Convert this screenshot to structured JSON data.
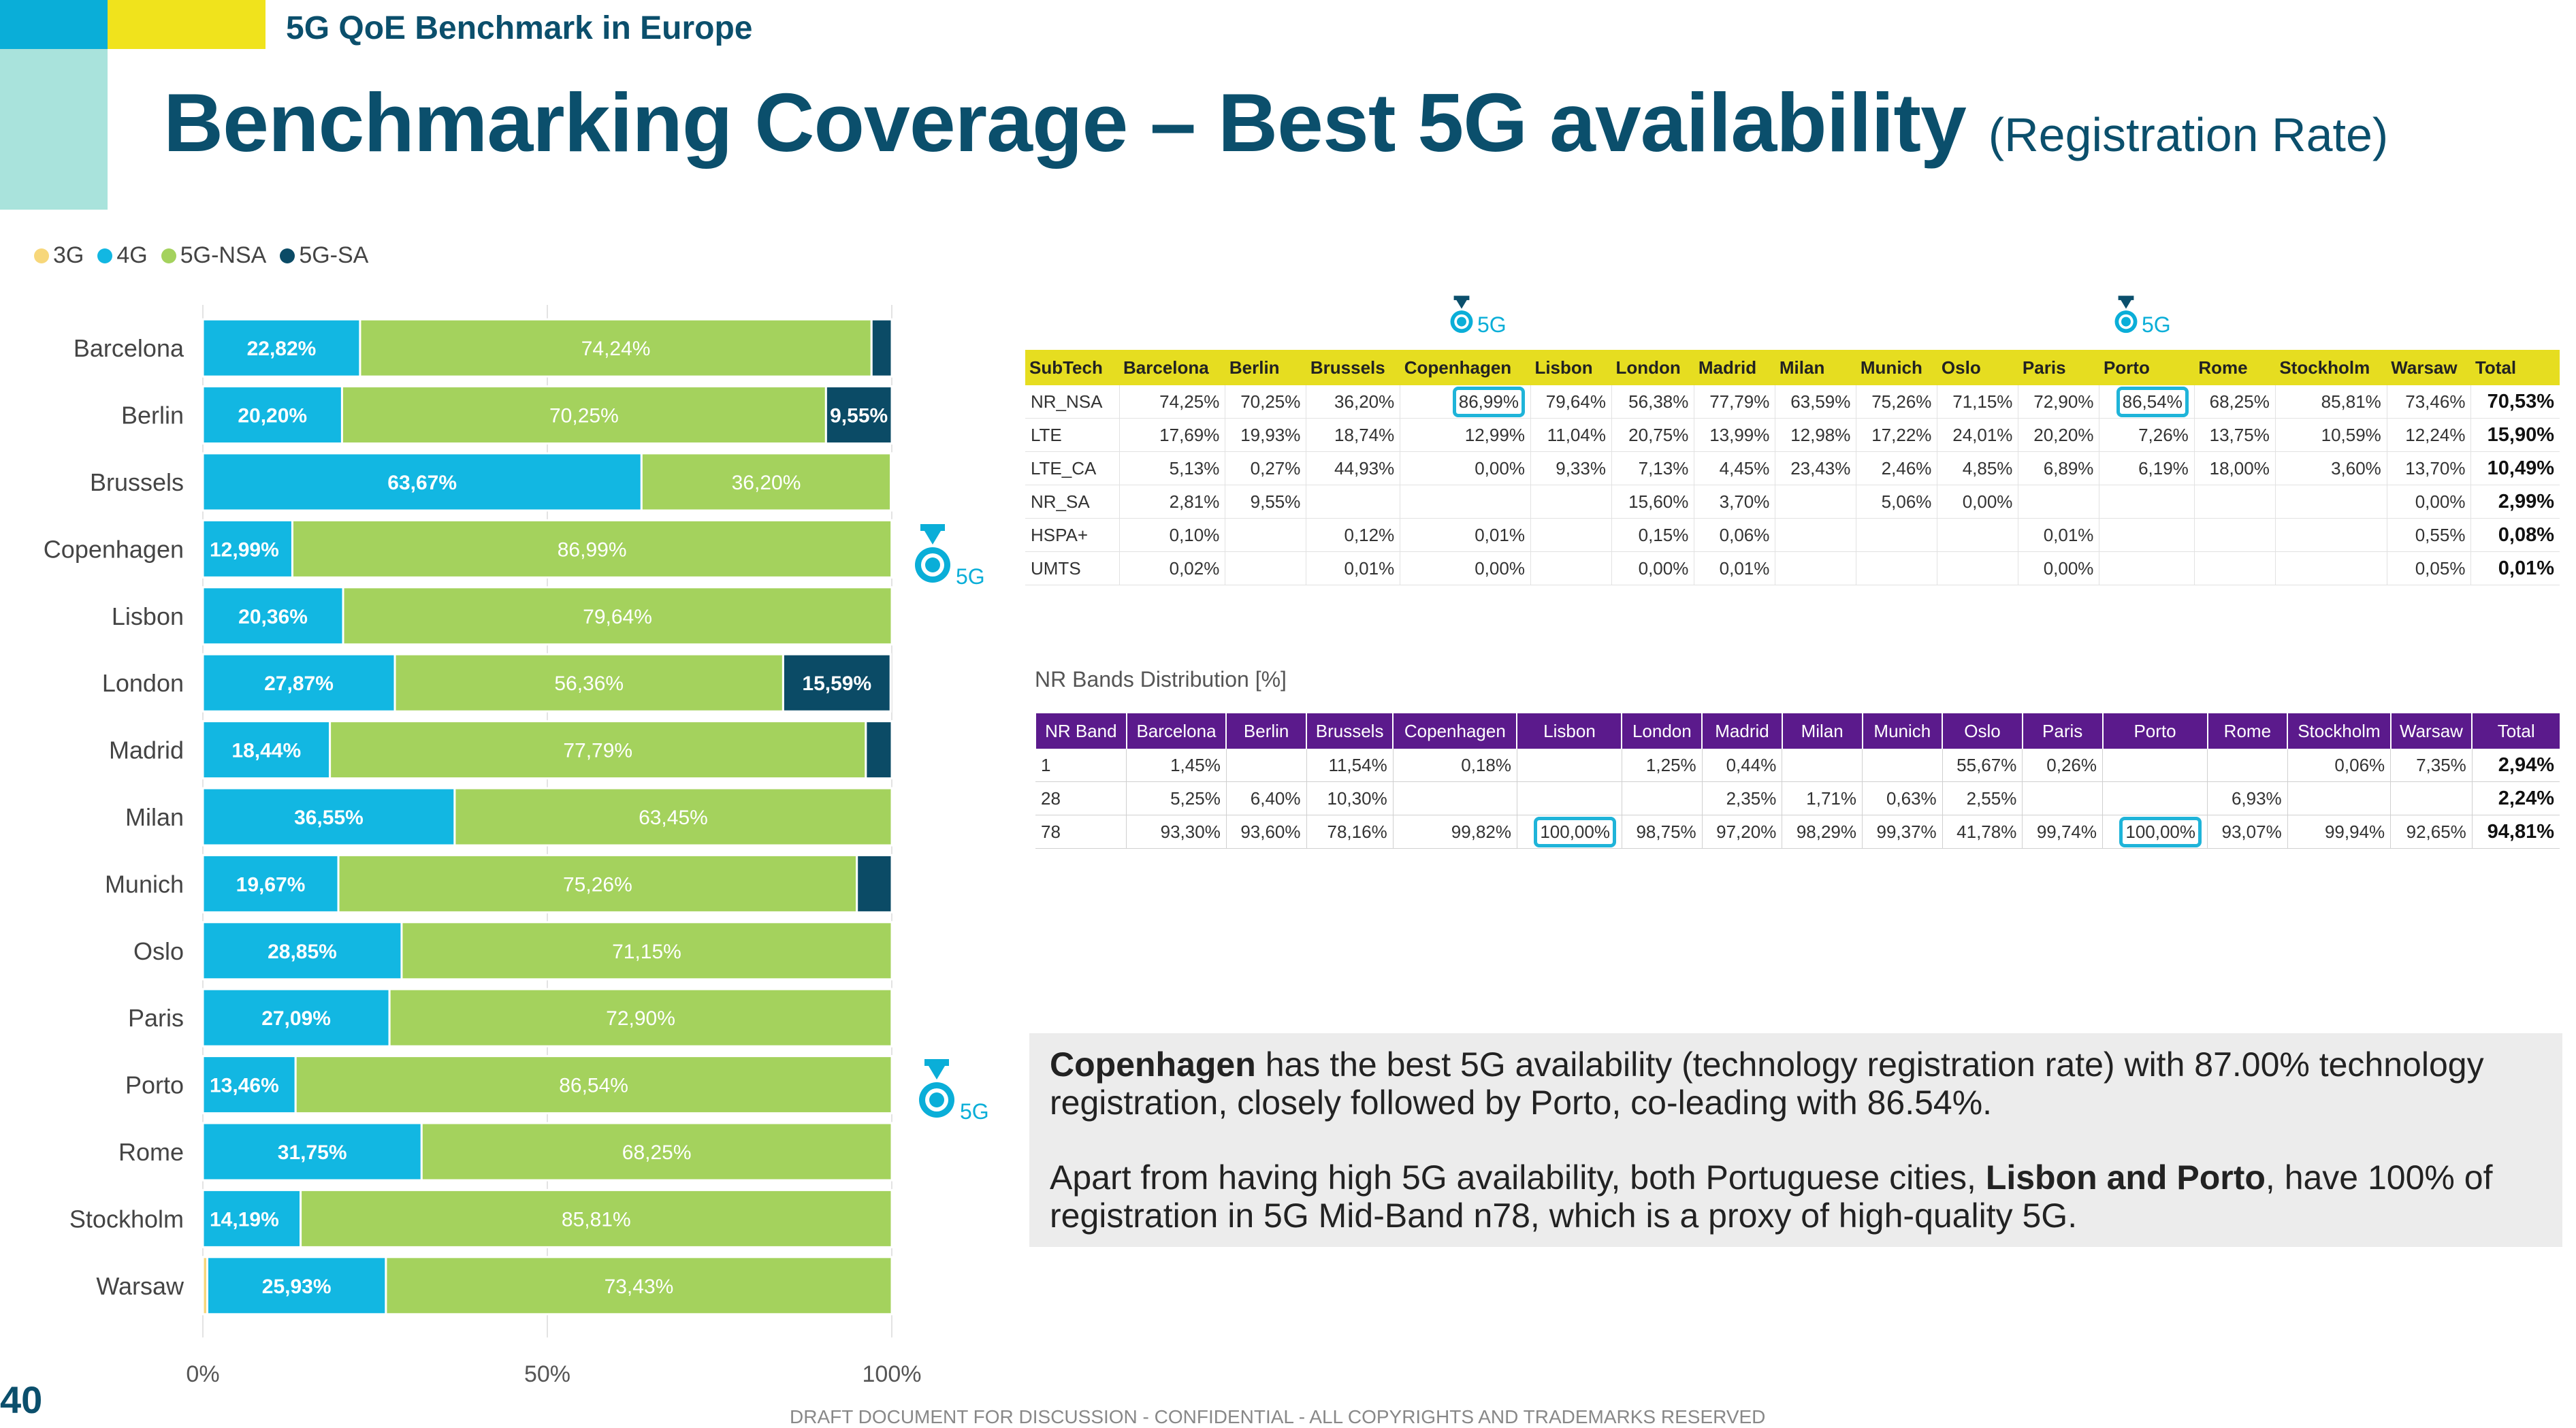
{
  "header": {
    "subtitle": "5G QoE Benchmark in Europe",
    "title": "Benchmarking Coverage – Best 5G availability",
    "title_suffix": "(Registration Rate)"
  },
  "colors": {
    "3G": "#f7d77a",
    "4G": "#12b7e2",
    "5G-NSA": "#a4d25d",
    "5G-SA": "#0b4b66"
  },
  "legend": [
    {
      "label": "3G",
      "color": "#f7d77a"
    },
    {
      "label": "4G",
      "color": "#12b7e2"
    },
    {
      "label": "5G-NSA",
      "color": "#a4d25d"
    },
    {
      "label": "5G-SA",
      "color": "#0b4b66"
    }
  ],
  "chart_data": {
    "type": "bar",
    "orientation": "horizontal",
    "stacked": "100%",
    "categories": [
      "Barcelona",
      "Berlin",
      "Brussels",
      "Copenhagen",
      "Lisbon",
      "London",
      "Madrid",
      "Milan",
      "Munich",
      "Oslo",
      "Paris",
      "Porto",
      "Rome",
      "Stockholm",
      "Warsaw"
    ],
    "series": [
      {
        "name": "3G",
        "values": [
          0,
          0,
          0,
          0,
          0,
          0,
          0,
          0,
          0,
          0,
          0,
          0,
          0,
          0,
          0.64
        ]
      },
      {
        "name": "4G",
        "values": [
          22.82,
          20.2,
          63.67,
          12.99,
          20.36,
          27.87,
          18.44,
          36.55,
          19.67,
          28.85,
          27.09,
          13.46,
          31.75,
          14.19,
          25.93
        ]
      },
      {
        "name": "5G-NSA",
        "values": [
          74.24,
          70.25,
          36.2,
          86.99,
          79.64,
          56.36,
          77.79,
          63.45,
          75.26,
          71.15,
          72.9,
          86.54,
          68.25,
          85.81,
          73.43
        ]
      },
      {
        "name": "5G-SA",
        "values": [
          2.94,
          9.55,
          0.13,
          0.02,
          0,
          15.59,
          3.77,
          0,
          5.07,
          0,
          0.01,
          0,
          0,
          0,
          0
        ]
      }
    ],
    "labels": {
      "4G": [
        "22,82%",
        "20,20%",
        "63,67%",
        "12,99%",
        "20,36%",
        "27,87%",
        "18,44%",
        "36,55%",
        "19,67%",
        "28,85%",
        "27,09%",
        "13,46%",
        "31,75%",
        "14,19%",
        "25,93%"
      ],
      "5G-NSA": [
        "74,24%",
        "70,25%",
        "36,20%",
        "86,99%",
        "79,64%",
        "56,36%",
        "77,79%",
        "63,45%",
        "75,26%",
        "71,15%",
        "72,90%",
        "86,54%",
        "68,25%",
        "85,81%",
        "73,43%"
      ],
      "5G-SA": [
        "",
        "9,55%",
        "",
        "",
        "",
        "15,59%",
        "",
        "",
        "",
        "",
        "",
        "",
        "",
        "",
        ""
      ]
    },
    "x_ticks": [
      "0%",
      "50%",
      "100%"
    ],
    "xlim": [
      0,
      100
    ]
  },
  "medal_label": "5G",
  "subtech_table": {
    "columns": [
      "SubTech",
      "Barcelona",
      "Berlin",
      "Brussels",
      "Copenhagen",
      "Lisbon",
      "London",
      "Madrid",
      "Milan",
      "Munich",
      "Oslo",
      "Paris",
      "Porto",
      "Rome",
      "Stockholm",
      "Warsaw",
      "Total"
    ],
    "rows": [
      [
        "NR_NSA",
        "74,25%",
        "70,25%",
        "36,20%",
        "86,99%",
        "79,64%",
        "56,38%",
        "77,79%",
        "63,59%",
        "75,26%",
        "71,15%",
        "72,90%",
        "86,54%",
        "68,25%",
        "85,81%",
        "73,46%",
        "70,53%"
      ],
      [
        "LTE",
        "17,69%",
        "19,93%",
        "18,74%",
        "12,99%",
        "11,04%",
        "20,75%",
        "13,99%",
        "12,98%",
        "17,22%",
        "24,01%",
        "20,20%",
        "7,26%",
        "13,75%",
        "10,59%",
        "12,24%",
        "15,90%"
      ],
      [
        "LTE_CA",
        "5,13%",
        "0,27%",
        "44,93%",
        "0,00%",
        "9,33%",
        "7,13%",
        "4,45%",
        "23,43%",
        "2,46%",
        "4,85%",
        "6,89%",
        "6,19%",
        "18,00%",
        "3,60%",
        "13,70%",
        "10,49%"
      ],
      [
        "NR_SA",
        "2,81%",
        "9,55%",
        "",
        "",
        "",
        "15,60%",
        "3,70%",
        "",
        "5,06%",
        "0,00%",
        "",
        "",
        "",
        "",
        "0,00%",
        "2,99%"
      ],
      [
        "HSPA+",
        "0,10%",
        "",
        "0,12%",
        "0,01%",
        "",
        "0,15%",
        "0,06%",
        "",
        "",
        "",
        "0,01%",
        "",
        "",
        "",
        "0,55%",
        "0,08%"
      ],
      [
        "UMTS",
        "0,02%",
        "",
        "0,01%",
        "0,00%",
        "",
        "0,00%",
        "0,01%",
        "",
        "",
        "",
        "0,00%",
        "",
        "",
        "",
        "0,05%",
        "0,01%"
      ]
    ]
  },
  "nr_bands_title": "NR Bands Distribution [%]",
  "nr_bands_table": {
    "columns": [
      "NR Band",
      "Barcelona",
      "Berlin",
      "Brussels",
      "Copenhagen",
      "Lisbon",
      "London",
      "Madrid",
      "Milan",
      "Munich",
      "Oslo",
      "Paris",
      "Porto",
      "Rome",
      "Stockholm",
      "Warsaw",
      "Total"
    ],
    "rows": [
      [
        "1",
        "1,45%",
        "",
        "11,54%",
        "0,18%",
        "",
        "1,25%",
        "0,44%",
        "",
        "",
        "55,67%",
        "0,26%",
        "",
        "",
        "0,06%",
        "7,35%",
        "2,94%"
      ],
      [
        "28",
        "5,25%",
        "6,40%",
        "10,30%",
        "",
        "",
        "",
        "2,35%",
        "1,71%",
        "0,63%",
        "2,55%",
        "",
        "",
        "6,93%",
        "",
        "",
        "2,24%"
      ],
      [
        "78",
        "93,30%",
        "93,60%",
        "78,16%",
        "99,82%",
        "100,00%",
        "98,75%",
        "97,20%",
        "98,29%",
        "99,37%",
        "41,78%",
        "99,74%",
        "100,00%",
        "93,07%",
        "99,94%",
        "92,65%",
        "94,81%"
      ]
    ]
  },
  "note": {
    "p1_bold": "Copenhagen",
    "p1_rest": " has the best 5G availability (technology registration rate) with 87.00% technology registration, closely followed by Porto, co-leading with 86.54%.",
    "p2_start": "Apart from having high 5G availability, both Portuguese cities, ",
    "p2_bold": "Lisbon and Porto",
    "p2_rest": ", have 100% of registration in 5G Mid-Band n78, which is a proxy of high-quality 5G."
  },
  "page_number": "40",
  "footer": "DRAFT DOCUMENT FOR DISCUSSION - CONFIDENTIAL - ALL COPYRIGHTS AND TRADEMARKS RESERVED"
}
